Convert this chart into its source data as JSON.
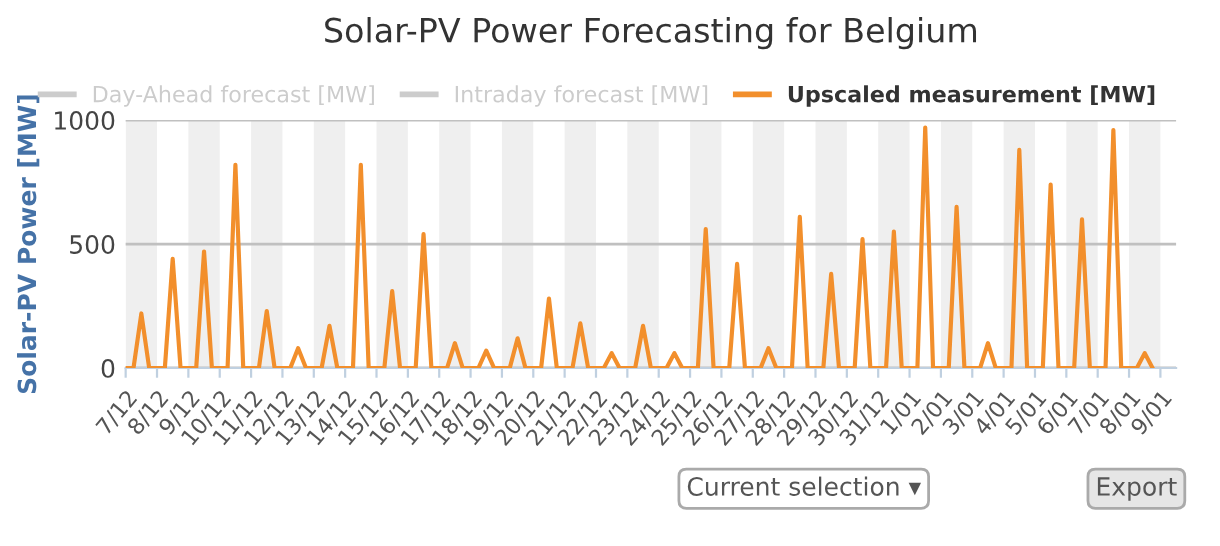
{
  "chart_data": {
    "type": "line",
    "title": "Solar-PV Power Forecasting for Belgium",
    "ylabel": "Solar-PV Power [MW]",
    "categories": [
      "7/12",
      null,
      null,
      null,
      "8/12",
      null,
      null,
      null,
      "9/12",
      null,
      null,
      null,
      "10/12",
      null,
      null,
      null,
      "11/12",
      null,
      null,
      null,
      "12/12",
      null,
      null,
      null,
      "13/12",
      null,
      null,
      null,
      "14/12",
      null,
      null,
      null,
      "15/12",
      null,
      null,
      null,
      "16/12",
      null,
      null,
      null,
      "17/12",
      null,
      null,
      null,
      "18/12",
      null,
      null,
      null,
      "19/12",
      null,
      null,
      null,
      "20/12",
      null,
      null,
      null,
      "21/12",
      null,
      null,
      null,
      "22/12",
      null,
      null,
      null,
      "23/12",
      null,
      null,
      null,
      "24/12",
      null,
      null,
      null,
      "25/12",
      null,
      null,
      null,
      "26/12",
      null,
      null,
      null,
      "27/12",
      null,
      null,
      null,
      "28/12",
      null,
      null,
      null,
      "29/12",
      null,
      null,
      null,
      "30/12",
      null,
      null,
      null,
      "31/12",
      null,
      null,
      null,
      "1/01",
      null,
      null,
      null,
      "2/01",
      null,
      null,
      null,
      "3/01",
      null,
      null,
      null,
      "4/01",
      null,
      null,
      null,
      "5/01",
      null,
      null,
      null,
      "6/01",
      null,
      null,
      null,
      "7/01",
      null,
      null,
      null,
      "8/01",
      null,
      null,
      null,
      "9/01",
      null,
      null
    ],
    "series": [
      {
        "name": "Day-Ahead forecast [MW]",
        "color": "#cccccc",
        "values": [
          null,
          null,
          null,
          null,
          null,
          null,
          null,
          null,
          null,
          null,
          null,
          null,
          null,
          null,
          null,
          null,
          null,
          null,
          null,
          null,
          null,
          null,
          null,
          null,
          null,
          null,
          null,
          null,
          null,
          null,
          null,
          null,
          null,
          null,
          null,
          null,
          null,
          null,
          null,
          null,
          null,
          null,
          null,
          null,
          null,
          null,
          null,
          null,
          null,
          null,
          null,
          null,
          null,
          null,
          null,
          null,
          null,
          null,
          null,
          null,
          null,
          null,
          null,
          null,
          null,
          null,
          null,
          null,
          null,
          null,
          null,
          null,
          null,
          null,
          null,
          null,
          null,
          null,
          null,
          null,
          null,
          null,
          null,
          null,
          null,
          null,
          null,
          null,
          null,
          null,
          null,
          null,
          null,
          null,
          null,
          null,
          null,
          null,
          null,
          null,
          null,
          null,
          null,
          null,
          null,
          null,
          null,
          null,
          null,
          null,
          null,
          null,
          null,
          null,
          null,
          null,
          null,
          null,
          null,
          null,
          null,
          null,
          null,
          null,
          null,
          null,
          null,
          null,
          null,
          null,
          null,
          null,
          null,
          null,
          null
        ]
      },
      {
        "name": "Intraday forecast [MW]",
        "color": "#cccccc",
        "values": [
          null,
          null,
          null,
          null,
          null,
          null,
          null,
          null,
          null,
          null,
          null,
          null,
          null,
          null,
          null,
          null,
          null,
          null,
          null,
          null,
          null,
          null,
          null,
          null,
          null,
          null,
          null,
          null,
          null,
          null,
          null,
          null,
          null,
          null,
          null,
          null,
          null,
          null,
          null,
          null,
          null,
          null,
          null,
          null,
          null,
          null,
          null,
          null,
          null,
          null,
          null,
          null,
          null,
          null,
          null,
          null,
          null,
          null,
          null,
          null,
          null,
          null,
          null,
          null,
          null,
          null,
          null,
          null,
          null,
          null,
          null,
          null,
          null,
          null,
          null,
          null,
          null,
          null,
          null,
          null,
          null,
          null,
          null,
          null,
          null,
          null,
          null,
          null,
          null,
          null,
          null,
          null,
          null,
          null,
          null,
          null,
          null,
          null,
          null,
          null,
          null,
          null,
          null,
          null,
          null,
          null,
          null,
          null,
          null,
          null,
          null,
          null,
          null,
          null,
          null,
          null,
          null,
          null,
          null,
          null,
          null,
          null,
          null,
          null,
          null,
          null,
          null,
          null,
          null,
          null,
          null,
          null,
          null,
          null,
          null
        ]
      },
      {
        "name": "Upscaled measurement [MW]",
        "color": "#f28f2c",
        "values": [
          0,
          0,
          220,
          0,
          0,
          0,
          440,
          0,
          0,
          0,
          470,
          0,
          0,
          0,
          820,
          0,
          0,
          0,
          230,
          0,
          0,
          0,
          80,
          0,
          0,
          0,
          170,
          0,
          0,
          0,
          820,
          0,
          0,
          0,
          310,
          0,
          0,
          0,
          540,
          0,
          0,
          0,
          100,
          0,
          0,
          0,
          70,
          0,
          0,
          0,
          120,
          0,
          0,
          0,
          280,
          0,
          0,
          0,
          180,
          0,
          0,
          0,
          60,
          0,
          0,
          0,
          170,
          0,
          0,
          0,
          60,
          0,
          0,
          0,
          560,
          0,
          0,
          0,
          420,
          0,
          0,
          0,
          80,
          0,
          0,
          0,
          610,
          0,
          0,
          0,
          380,
          0,
          0,
          0,
          520,
          0,
          0,
          0,
          550,
          0,
          0,
          0,
          970,
          0,
          0,
          0,
          650,
          0,
          0,
          0,
          100,
          0,
          0,
          0,
          880,
          0,
          0,
          0,
          740,
          0,
          0,
          0,
          600,
          0,
          0,
          0,
          960,
          0,
          0,
          0,
          60,
          0,
          null,
          null,
          null
        ]
      }
    ],
    "ylim": [
      0,
      1000
    ],
    "yticks": [
      0,
      500,
      1000
    ],
    "bands": [
      {
        "axis": "x",
        "from": "7/12",
        "to": "8/12",
        "color": "#efefef"
      },
      {
        "axis": "x",
        "from": "9/12",
        "to": "10/12",
        "color": "#efefef"
      },
      {
        "axis": "x",
        "from": "11/12",
        "to": "12/12",
        "color": "#efefef"
      },
      {
        "axis": "x",
        "from": "13/12",
        "to": "14/12",
        "color": "#efefef"
      },
      {
        "axis": "x",
        "from": "15/12",
        "to": "16/12",
        "color": "#efefef"
      },
      {
        "axis": "x",
        "from": "17/12",
        "to": "18/12",
        "color": "#efefef"
      },
      {
        "axis": "x",
        "from": "19/12",
        "to": "20/12",
        "color": "#efefef"
      },
      {
        "axis": "x",
        "from": "21/12",
        "to": "22/12",
        "color": "#efefef"
      },
      {
        "axis": "x",
        "from": "23/12",
        "to": "24/12",
        "color": "#efefef"
      },
      {
        "axis": "x",
        "from": "25/12",
        "to": "26/12",
        "color": "#efefef"
      },
      {
        "axis": "x",
        "from": "27/12",
        "to": "28/12",
        "color": "#efefef"
      },
      {
        "axis": "x",
        "from": "29/12",
        "to": "30/12",
        "color": "#efefef"
      },
      {
        "axis": "x",
        "from": "31/12",
        "to": "1/01",
        "color": "#efefef"
      },
      {
        "axis": "x",
        "from": "2/01",
        "to": "3/01",
        "color": "#efefef"
      },
      {
        "axis": "x",
        "from": "4/01",
        "to": "5/01",
        "color": "#efefef"
      },
      {
        "axis": "x",
        "from": "6/01",
        "to": "7/01",
        "color": "#efefef"
      },
      {
        "axis": "x",
        "from": "8/01",
        "to": "9/01",
        "color": "#efefef"
      }
    ],
    "grid": "y",
    "legend": "top",
    "marker": "none",
    "line_style": "solid",
    "annotations": [
      "Current selection ▾",
      "Export"
    ]
  }
}
